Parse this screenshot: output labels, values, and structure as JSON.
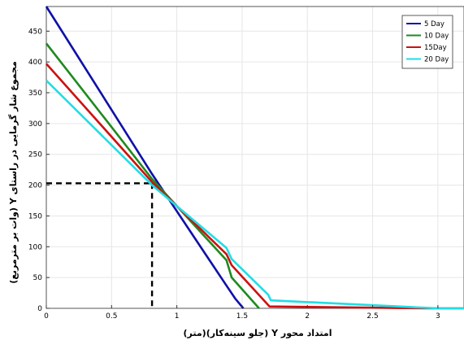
{
  "chart_data": {
    "type": "line",
    "xlabel": "امتداد محور Y (جلو سینه‌کار)(متر)",
    "ylabel": "مجموع شار گرمایی در راستای Y (وات بر مترمربع)",
    "xlim": [
      0,
      3.2
    ],
    "ylim": [
      0,
      490
    ],
    "x_ticks": [
      0,
      0.5,
      1,
      1.5,
      2,
      2.5,
      3
    ],
    "x_tick_labels": [
      "0",
      "0.5",
      "1",
      "1.5",
      "2",
      "2.5",
      "3"
    ],
    "y_ticks": [
      0,
      50,
      100,
      150,
      200,
      250,
      300,
      350,
      400,
      450
    ],
    "y_tick_labels": [
      "0",
      "50",
      "100",
      "150",
      "200",
      "250",
      "300",
      "350",
      "400",
      "450"
    ],
    "grid": true,
    "legend_position": "top-right",
    "series": [
      {
        "name": "5 Day",
        "color": "#1010a8",
        "points": [
          [
            0,
            490
          ],
          [
            0.81,
            218
          ],
          [
            1.37,
            40
          ],
          [
            1.45,
            15
          ],
          [
            1.51,
            0
          ]
        ]
      },
      {
        "name": "10 Day",
        "color": "#1f8a1f",
        "points": [
          [
            0,
            430
          ],
          [
            0.81,
            210
          ],
          [
            1.38,
            78
          ],
          [
            1.42,
            50
          ],
          [
            1.63,
            0
          ]
        ]
      },
      {
        "name": "15Day",
        "color": "#cc1111",
        "points": [
          [
            0,
            397
          ],
          [
            0.81,
            205
          ],
          [
            1.38,
            88
          ],
          [
            1.42,
            70
          ],
          [
            1.71,
            3
          ],
          [
            2.9,
            0
          ],
          [
            3.2,
            0
          ]
        ]
      },
      {
        "name": "20 Day",
        "color": "#22dde6",
        "points": [
          [
            0,
            370
          ],
          [
            0.81,
            200
          ],
          [
            1.38,
            98
          ],
          [
            1.42,
            80
          ],
          [
            1.7,
            22
          ],
          [
            1.72,
            13
          ],
          [
            3.0,
            0
          ],
          [
            3.2,
            0
          ]
        ]
      }
    ],
    "annotation": {
      "type": "dashed-guide",
      "x": 0.81,
      "y": 203,
      "color": "#000000"
    }
  }
}
